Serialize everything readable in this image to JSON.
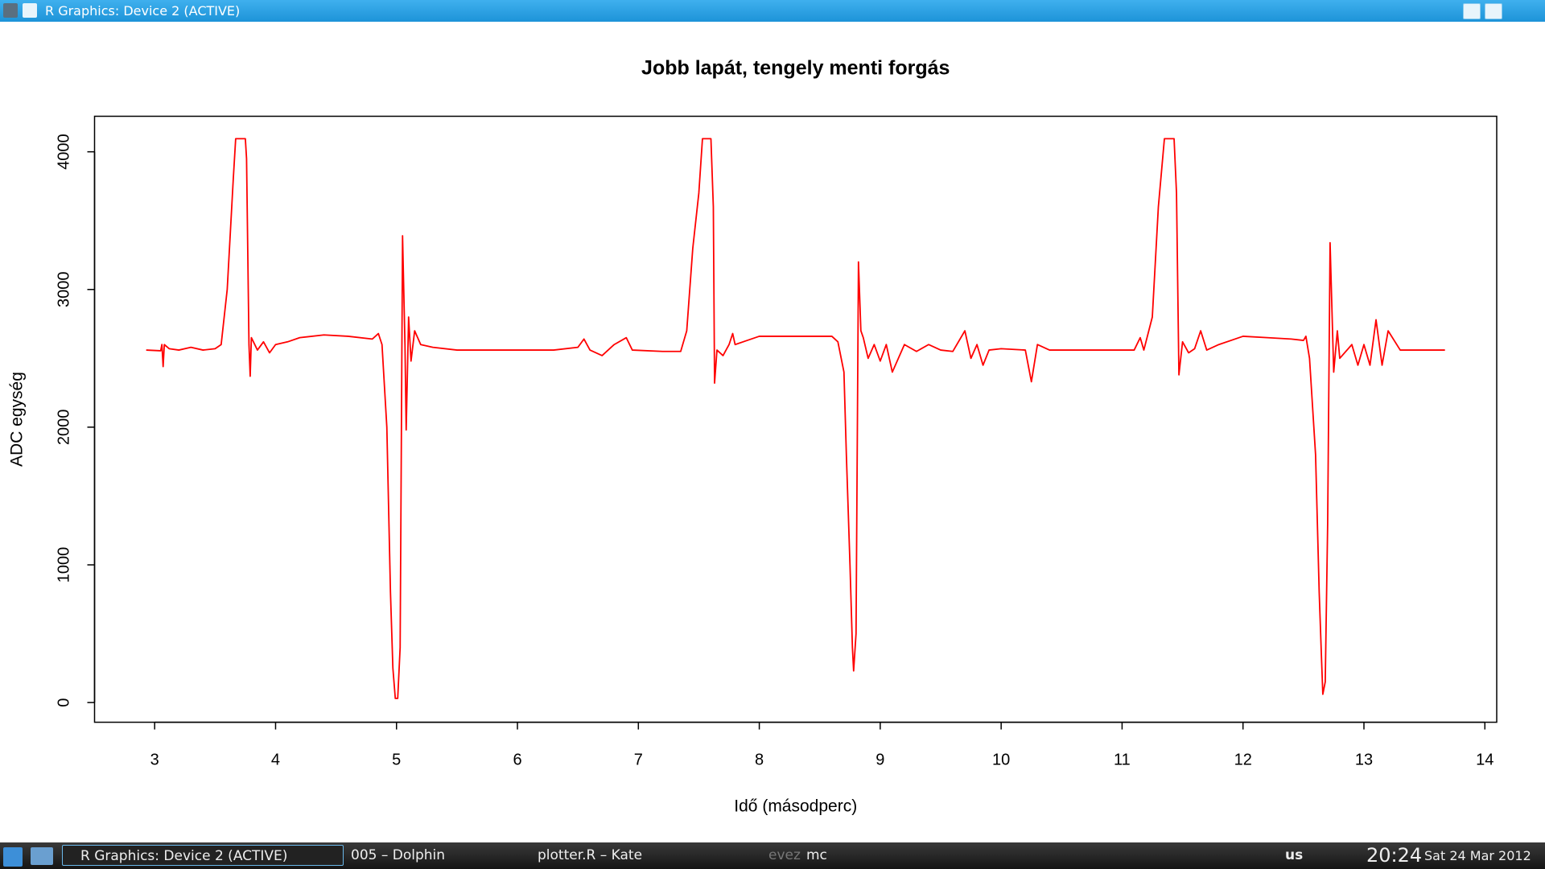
{
  "window": {
    "title": "R Graphics: Device 2 (ACTIVE)"
  },
  "chart_data": {
    "type": "line",
    "title": "Jobb lapát, tengely menti forgás",
    "x_label": "Idő (másodperc)",
    "y_label": "ADC egység",
    "color": "#ff0000",
    "x": [
      2.93,
      3.05,
      3.06,
      3.07,
      3.08,
      3.12,
      3.2,
      3.3,
      3.4,
      3.5,
      3.55,
      3.6,
      3.65,
      3.67,
      3.75,
      3.76,
      3.78,
      3.79,
      3.8,
      3.85,
      3.9,
      3.95,
      4.0,
      4.1,
      4.2,
      4.4,
      4.6,
      4.8,
      4.85,
      4.88,
      4.92,
      4.95,
      4.97,
      4.99,
      5.01,
      5.03,
      5.05,
      5.07,
      5.08,
      5.1,
      5.12,
      5.15,
      5.2,
      5.3,
      5.5,
      5.8,
      6.0,
      6.3,
      6.5,
      6.55,
      6.6,
      6.7,
      6.8,
      6.9,
      6.95,
      7.2,
      7.35,
      7.4,
      7.45,
      7.5,
      7.53,
      7.6,
      7.62,
      7.63,
      7.65,
      7.7,
      7.75,
      7.78,
      7.8,
      7.9,
      8.0,
      8.2,
      8.5,
      8.6,
      8.65,
      8.7,
      8.72,
      8.75,
      8.77,
      8.78,
      8.8,
      8.82,
      8.84,
      8.86,
      8.9,
      8.95,
      9.0,
      9.05,
      9.1,
      9.2,
      9.3,
      9.4,
      9.5,
      9.6,
      9.7,
      9.75,
      9.8,
      9.85,
      9.9,
      10.0,
      10.2,
      10.25,
      10.3,
      10.4,
      10.5,
      10.8,
      11.1,
      11.15,
      11.18,
      11.25,
      11.3,
      11.35,
      11.43,
      11.45,
      11.47,
      11.5,
      11.55,
      11.6,
      11.65,
      11.7,
      11.8,
      12.0,
      12.2,
      12.4,
      12.5,
      12.52,
      12.55,
      12.6,
      12.63,
      12.65,
      12.66,
      12.68,
      12.7,
      12.72,
      12.75,
      12.78,
      12.8,
      12.9,
      12.95,
      13.0,
      13.05,
      13.1,
      13.15,
      13.2,
      13.3,
      13.5,
      13.67
    ],
    "values": [
      2560,
      2555,
      2600,
      2440,
      2600,
      2570,
      2560,
      2580,
      2560,
      2570,
      2600,
      3000,
      3800,
      4095,
      4095,
      3950,
      2600,
      2370,
      2650,
      2560,
      2620,
      2540,
      2600,
      2620,
      2650,
      2670,
      2660,
      2640,
      2680,
      2600,
      2000,
      800,
      250,
      30,
      30,
      400,
      3390,
      2600,
      1980,
      2800,
      2480,
      2700,
      2600,
      2580,
      2560,
      2560,
      2560,
      2560,
      2580,
      2640,
      2560,
      2520,
      2600,
      2650,
      2560,
      2550,
      2550,
      2700,
      3300,
      3700,
      4095,
      4095,
      3600,
      2320,
      2560,
      2520,
      2600,
      2680,
      2600,
      2630,
      2660,
      2660,
      2660,
      2660,
      2620,
      2400,
      1800,
      1000,
      400,
      230,
      500,
      3200,
      2700,
      2650,
      2500,
      2600,
      2480,
      2600,
      2400,
      2600,
      2550,
      2600,
      2560,
      2550,
      2700,
      2500,
      2600,
      2450,
      2560,
      2570,
      2560,
      2330,
      2600,
      2560,
      2560,
      2560,
      2560,
      2650,
      2560,
      2800,
      3600,
      4095,
      4095,
      3700,
      2380,
      2620,
      2540,
      2570,
      2700,
      2560,
      2600,
      2660,
      2650,
      2640,
      2630,
      2660,
      2500,
      1800,
      800,
      300,
      60,
      150,
      1300,
      3340,
      2400,
      2700,
      2500,
      2600,
      2450,
      2600,
      2450,
      2780,
      2450,
      2700,
      2560,
      2560,
      2560
    ],
    "xlim": [
      2.503,
      14.098
    ],
    "xticks": [
      3,
      4,
      5,
      6,
      7,
      8,
      9,
      10,
      11,
      12,
      13,
      14
    ],
    "ylim": [
      -143,
      4258
    ],
    "yticks": [
      0,
      1000,
      2000,
      3000,
      4000
    ]
  },
  "taskbar": {
    "tasks": [
      "R Graphics: Device 2 (ACTIVE)",
      "005 – Dolphin",
      "plotter.R – Kate",
      "evez",
      "mc"
    ],
    "keyboard": "us",
    "time": "20:24",
    "date": "Sat 24 Mar 2012"
  }
}
